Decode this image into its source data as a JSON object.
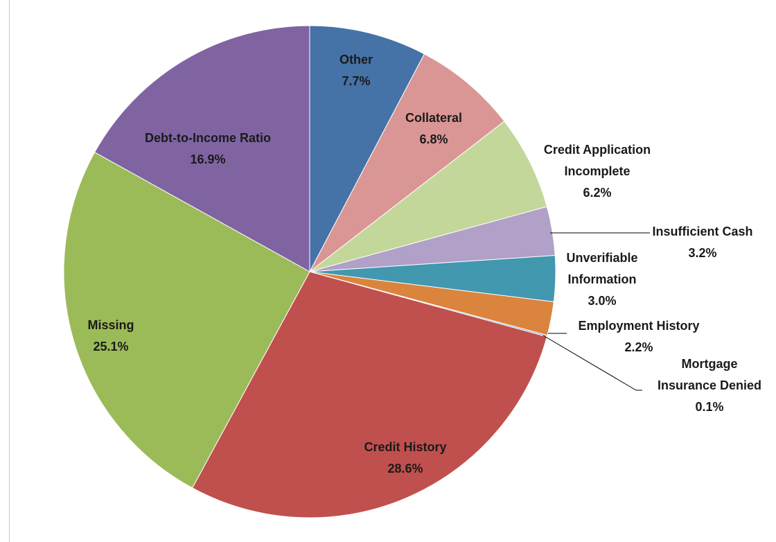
{
  "chart_data": {
    "type": "pie",
    "title": "",
    "slices": [
      {
        "label_lines": [
          "Other"
        ],
        "value_label": "7.7%",
        "value": 7.7,
        "color": "#4572A7"
      },
      {
        "label_lines": [
          "Collateral"
        ],
        "value_label": "6.8%",
        "value": 6.8,
        "color": "#DA9694"
      },
      {
        "label_lines": [
          "Credit Application",
          "Incomplete"
        ],
        "value_label": "6.2%",
        "value": 6.2,
        "color": "#C4D79B"
      },
      {
        "label_lines": [
          "Insufficient Cash"
        ],
        "value_label": "3.2%",
        "value": 3.2,
        "color": "#B1A0C7"
      },
      {
        "label_lines": [
          "Unverifiable",
          "Information"
        ],
        "value_label": "3.0%",
        "value": 3.0,
        "color": "#4198AF"
      },
      {
        "label_lines": [
          "Employment History"
        ],
        "value_label": "2.2%",
        "value": 2.2,
        "color": "#DB843D"
      },
      {
        "label_lines": [
          "Mortgage",
          "Insurance Denied"
        ],
        "value_label": "0.1%",
        "value": 0.1,
        "color": "#93A9CF"
      },
      {
        "label_lines": [
          "Credit History"
        ],
        "value_label": "28.6%",
        "value": 28.6,
        "color": "#C0504D"
      },
      {
        "label_lines": [
          "Missing"
        ],
        "value_label": "25.1%",
        "value": 25.1,
        "color": "#9BBB59"
      },
      {
        "label_lines": [
          "Debt-to-Income Ratio"
        ],
        "value_label": "16.9%",
        "value": 16.9,
        "color": "#8064A2"
      }
    ],
    "start_angle_deg": 0,
    "direction": "clockwise",
    "legend": "none"
  }
}
